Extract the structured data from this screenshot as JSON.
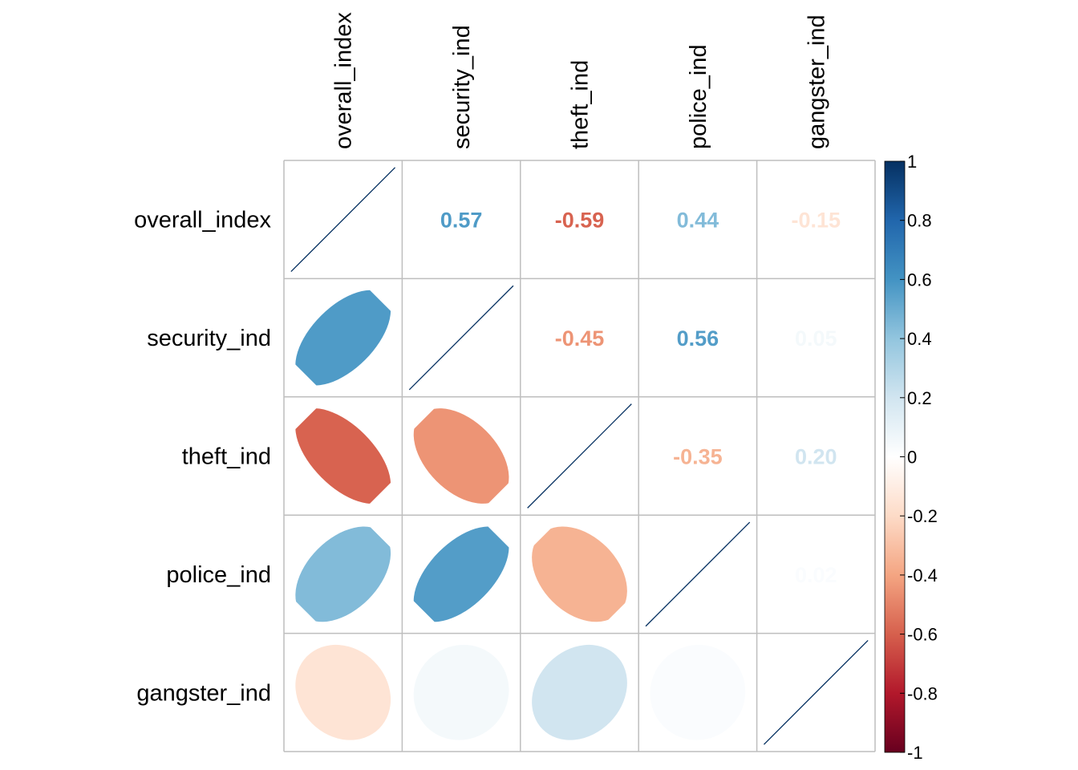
{
  "chart_data": {
    "type": "heatmap",
    "variables": [
      "overall_index",
      "security_ind",
      "theft_ind",
      "police_ind",
      "gangster_ind"
    ],
    "matrix": [
      [
        1.0,
        0.57,
        -0.59,
        0.44,
        -0.15
      ],
      [
        0.57,
        1.0,
        -0.45,
        0.56,
        0.05
      ],
      [
        -0.59,
        -0.45,
        1.0,
        -0.35,
        0.2
      ],
      [
        0.44,
        0.56,
        -0.35,
        1.0,
        0.02
      ],
      [
        -0.15,
        0.05,
        0.2,
        0.02,
        1.0
      ]
    ],
    "upper_labels": [
      [
        "",
        "0.57",
        "-0.59",
        "0.44",
        "-0.15"
      ],
      [
        "",
        "",
        "-0.45",
        "0.56",
        "0.05"
      ],
      [
        "",
        "",
        "",
        "-0.35",
        "0.20"
      ],
      [
        "",
        "",
        "",
        "",
        "0.02"
      ],
      [
        "",
        "",
        "",
        "",
        ""
      ]
    ],
    "lower_method": "ellipse",
    "upper_method": "number",
    "colorbar": {
      "range": [
        -1,
        1
      ],
      "ticks": [
        1,
        0.8,
        0.6,
        0.4,
        0.2,
        0,
        -0.2,
        -0.4,
        -0.6,
        -0.8,
        -1
      ],
      "tick_labels": [
        "1",
        "0.8",
        "0.6",
        "0.4",
        "0.2",
        "0",
        "-0.2",
        "-0.4",
        "-0.6",
        "-0.8",
        "-1"
      ],
      "colors": [
        "#67001F",
        "#B2182B",
        "#D6604D",
        "#F4A582",
        "#FDDBC7",
        "#FFFFFF",
        "#D1E5F0",
        "#92C5DE",
        "#4393C3",
        "#2166AC",
        "#053061"
      ]
    },
    "grid_color": "#BEBEBE",
    "diagonal_line_color": "#053061"
  }
}
